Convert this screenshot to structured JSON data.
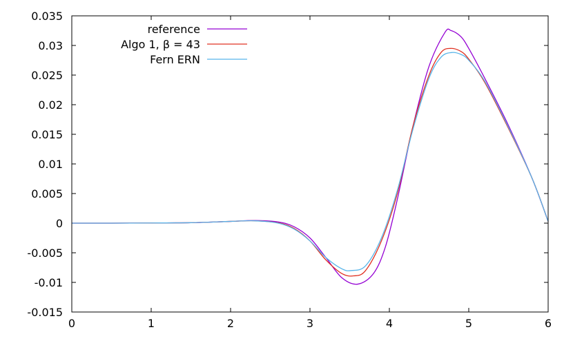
{
  "chart_data": {
    "type": "line",
    "title": "",
    "xlabel": "",
    "ylabel": "",
    "xlim": [
      0,
      6
    ],
    "ylim": [
      -0.015,
      0.035
    ],
    "grid": false,
    "legend_position": "top-left",
    "x_ticks": [
      "0",
      "1",
      "2",
      "3",
      "4",
      "5",
      "6"
    ],
    "y_ticks": [
      "-0.015",
      "-0.01",
      "-0.005",
      "0",
      "0.005",
      "0.01",
      "0.015",
      "0.02",
      "0.025",
      "0.03",
      "0.035"
    ],
    "series": [
      {
        "name": "reference",
        "color": "#9400d3",
        "points": [
          [
            0,
            0
          ],
          [
            0.5,
            0
          ],
          [
            1.0,
            3e-05
          ],
          [
            1.5,
            8e-05
          ],
          [
            2.0,
            0.0003
          ],
          [
            2.3,
            0.00045
          ],
          [
            2.6,
            0.0002
          ],
          [
            2.8,
            -0.0006
          ],
          [
            3.0,
            -0.0025
          ],
          [
            3.2,
            -0.0058
          ],
          [
            3.4,
            -0.0092
          ],
          [
            3.6,
            -0.0103
          ],
          [
            3.8,
            -0.0085
          ],
          [
            3.95,
            -0.004
          ],
          [
            4.1,
            0.004
          ],
          [
            4.3,
            0.0165
          ],
          [
            4.5,
            0.0265
          ],
          [
            4.7,
            0.0322
          ],
          [
            4.78,
            0.0325
          ],
          [
            4.9,
            0.0315
          ],
          [
            5.0,
            0.0295
          ],
          [
            5.2,
            0.0245
          ],
          [
            5.5,
            0.0165
          ],
          [
            5.8,
            0.0075
          ],
          [
            6.0,
            0.0003
          ]
        ]
      },
      {
        "name": "Algo 1, β = 43",
        "color": "#e03020",
        "points": [
          [
            0,
            0
          ],
          [
            0.5,
            0
          ],
          [
            1.0,
            3e-05
          ],
          [
            1.5,
            8e-05
          ],
          [
            2.0,
            0.0003
          ],
          [
            2.3,
            0.0004
          ],
          [
            2.6,
            5e-05
          ],
          [
            2.8,
            -0.0009
          ],
          [
            3.0,
            -0.003
          ],
          [
            3.2,
            -0.0062
          ],
          [
            3.4,
            -0.0085
          ],
          [
            3.55,
            -0.0089
          ],
          [
            3.7,
            -0.008
          ],
          [
            3.9,
            -0.003
          ],
          [
            4.1,
            0.005
          ],
          [
            4.3,
            0.0165
          ],
          [
            4.5,
            0.025
          ],
          [
            4.65,
            0.0288
          ],
          [
            4.77,
            0.0295
          ],
          [
            4.9,
            0.029
          ],
          [
            5.0,
            0.0277
          ],
          [
            5.2,
            0.0238
          ],
          [
            5.5,
            0.016
          ],
          [
            5.8,
            0.0075
          ],
          [
            6.0,
            0.0003
          ]
        ]
      },
      {
        "name": "Fern ERN",
        "color": "#56b4e9",
        "points": [
          [
            0,
            0
          ],
          [
            0.5,
            0
          ],
          [
            1.0,
            3e-05
          ],
          [
            1.5,
            8e-05
          ],
          [
            2.0,
            0.0003
          ],
          [
            2.3,
            0.0004
          ],
          [
            2.6,
            0.0
          ],
          [
            2.8,
            -0.001
          ],
          [
            3.0,
            -0.003
          ],
          [
            3.2,
            -0.0058
          ],
          [
            3.4,
            -0.0077
          ],
          [
            3.52,
            -0.008
          ],
          [
            3.7,
            -0.0072
          ],
          [
            3.9,
            -0.0025
          ],
          [
            4.1,
            0.0055
          ],
          [
            4.3,
            0.016
          ],
          [
            4.5,
            0.0245
          ],
          [
            4.65,
            0.028
          ],
          [
            4.78,
            0.0288
          ],
          [
            4.9,
            0.0285
          ],
          [
            5.0,
            0.0275
          ],
          [
            5.2,
            0.024
          ],
          [
            5.5,
            0.0162
          ],
          [
            5.8,
            0.0075
          ],
          [
            6.0,
            0.0003
          ]
        ]
      }
    ]
  }
}
